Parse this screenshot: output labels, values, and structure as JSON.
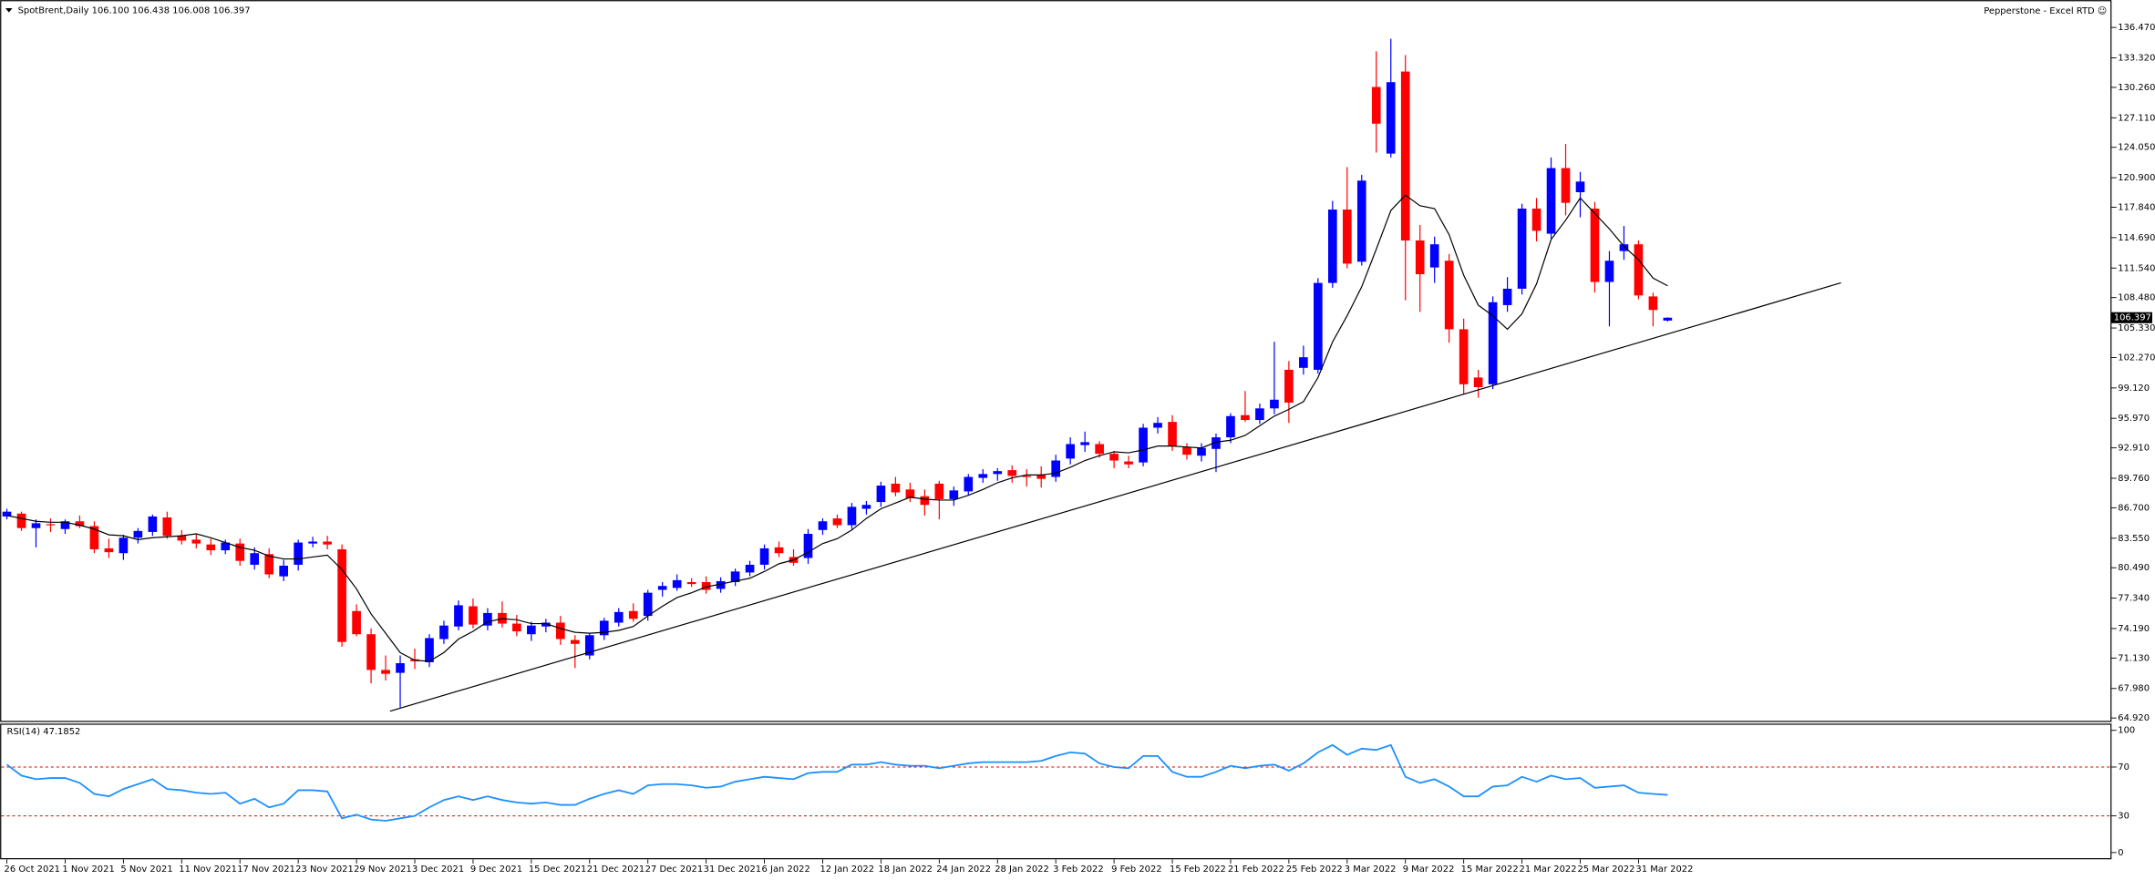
{
  "chart_data": [
    {
      "type": "candlestick",
      "title": "SpotBrent,Daily  106.100 106.438 106.008 106.397",
      "source": "Pepperstone - Excel RTD ☺",
      "categories": [
        "26 Oct 2021",
        null,
        null,
        null,
        "1 Nov 2021",
        null,
        null,
        null,
        "5 Nov 2021",
        null,
        null,
        null,
        "11 Nov 2021",
        null,
        null,
        null,
        "17 Nov 2021",
        null,
        null,
        null,
        "23 Nov 2021",
        null,
        null,
        null,
        "29 Nov 2021",
        null,
        null,
        null,
        "3 Dec 2021",
        null,
        null,
        null,
        "9 Dec 2021",
        null,
        null,
        null,
        "15 Dec 2021",
        null,
        null,
        null,
        "21 Dec 2021",
        null,
        null,
        null,
        "27 Dec 2021",
        null,
        null,
        null,
        "31 Dec 2021",
        null,
        null,
        null,
        "6 Jan 2022",
        null,
        null,
        null,
        "12 Jan 2022",
        null,
        null,
        null,
        "18 Jan 2022",
        null,
        null,
        null,
        "24 Jan 2022",
        null,
        null,
        null,
        "28 Jan 2022",
        null,
        null,
        null,
        "3 Feb 2022",
        null,
        null,
        null,
        "9 Feb 2022",
        null,
        null,
        null,
        "15 Feb 2022",
        null,
        null,
        null,
        "21 Feb 2022",
        null,
        null,
        null,
        "25 Feb 2022",
        null,
        null,
        null,
        "3 Mar 2022",
        null,
        null,
        null,
        "9 Mar 2022",
        null,
        null,
        null,
        "15 Mar 2022",
        null,
        null,
        null,
        "21 Mar 2022",
        null,
        null,
        null,
        "25 Mar 2022",
        null,
        null,
        null,
        "31 Mar 2022",
        null,
        null
      ],
      "open": [
        85.8,
        86.1,
        84.6,
        85.0,
        84.5,
        85.3,
        84.8,
        82.5,
        82.0,
        83.6,
        84.2,
        85.7,
        83.8,
        83.4,
        82.9,
        82.3,
        83.0,
        80.8,
        81.9,
        79.6,
        80.8,
        83.0,
        83.2,
        82.4,
        76.0,
        73.6,
        69.9,
        69.6,
        71.0,
        70.7,
        73.1,
        74.4,
        76.5,
        74.5,
        75.8,
        74.7,
        73.6,
        74.4,
        74.8,
        73.0,
        71.4,
        73.5,
        74.8,
        76.0,
        75.5,
        78.2,
        78.4,
        79.0,
        79.0,
        78.3,
        79.0,
        80.0,
        80.8,
        82.6,
        81.6,
        81.5,
        84.4,
        85.6,
        84.9,
        86.6,
        87.3,
        89.2,
        88.6,
        87.9,
        89.2,
        87.6,
        88.4,
        89.8,
        90.2,
        90.6,
        90.0,
        90.1,
        89.9,
        91.8,
        93.2,
        93.3,
        92.3,
        91.5,
        91.4,
        95.0,
        95.6,
        93.0,
        92.1,
        92.8,
        94.0,
        96.3,
        95.8,
        97.0,
        101.0,
        101.2,
        101.0,
        110.0,
        117.6,
        112.2,
        130.3,
        123.4,
        131.9,
        114.4,
        111.6,
        112.3,
        105.2,
        100.2,
        99.5,
        107.7,
        109.4,
        117.7,
        115.1,
        121.9,
        119.4,
        117.7,
        110.1,
        113.3,
        114.0,
        108.6,
        106.1
      ],
      "high": [
        86.6,
        86.3,
        85.5,
        85.6,
        85.5,
        85.9,
        85.3,
        83.5,
        83.9,
        84.6,
        86.0,
        86.3,
        84.4,
        84.0,
        83.5,
        83.4,
        83.5,
        82.6,
        82.5,
        81.3,
        83.4,
        83.7,
        83.8,
        82.9,
        76.7,
        74.2,
        71.4,
        71.4,
        72.1,
        73.6,
        75.0,
        77.1,
        77.3,
        76.3,
        77.0,
        75.6,
        74.9,
        75.2,
        75.5,
        73.5,
        73.7,
        75.3,
        76.3,
        76.8,
        78.2,
        79.0,
        79.8,
        79.4,
        79.6,
        79.5,
        80.4,
        81.2,
        82.9,
        83.2,
        82.4,
        84.5,
        85.6,
        86.0,
        87.2,
        87.4,
        89.4,
        89.9,
        89.3,
        88.6,
        89.5,
        88.9,
        90.2,
        90.7,
        90.8,
        91.1,
        90.7,
        91.0,
        92.2,
        94.0,
        94.6,
        93.6,
        92.6,
        92.1,
        95.4,
        96.1,
        96.3,
        93.4,
        93.4,
        94.4,
        96.5,
        98.8,
        97.5,
        103.9,
        101.9,
        103.5,
        110.5,
        118.5,
        122.0,
        121.2,
        134.0,
        135.3,
        133.6,
        116.0,
        114.8,
        113.0,
        106.3,
        101.0,
        108.6,
        110.6,
        118.2,
        118.8,
        123.0,
        124.4,
        121.5,
        118.4,
        113.3,
        115.9,
        114.4,
        109.0,
        106.438
      ],
      "low": [
        85.5,
        84.3,
        82.6,
        84.2,
        84.0,
        84.6,
        82.0,
        81.5,
        81.3,
        83.0,
        83.8,
        83.5,
        82.9,
        82.5,
        81.8,
        81.9,
        80.7,
        80.3,
        79.4,
        79.1,
        80.2,
        82.6,
        82.4,
        72.3,
        73.4,
        68.5,
        68.8,
        66.0,
        70.0,
        70.2,
        72.6,
        74.0,
        74.2,
        74.0,
        74.3,
        73.4,
        72.9,
        73.8,
        72.5,
        70.1,
        71.0,
        73.0,
        74.4,
        74.9,
        75.0,
        77.5,
        78.1,
        78.5,
        77.8,
        77.9,
        78.6,
        79.6,
        80.3,
        81.6,
        80.7,
        80.9,
        83.9,
        84.6,
        84.5,
        86.0,
        86.8,
        87.9,
        87.3,
        85.9,
        85.5,
        86.9,
        88.0,
        89.3,
        89.5,
        89.3,
        88.9,
        88.8,
        89.4,
        91.2,
        92.5,
        91.9,
        90.8,
        90.8,
        91.0,
        94.4,
        92.6,
        91.7,
        91.5,
        90.4,
        93.4,
        95.6,
        95.4,
        96.4,
        95.5,
        100.5,
        100.6,
        109.5,
        111.5,
        111.8,
        123.5,
        123.0,
        108.2,
        107.0,
        110.0,
        103.8,
        98.5,
        98.1,
        99.0,
        107.0,
        108.8,
        114.3,
        114.6,
        117.0,
        116.8,
        109.0,
        105.5,
        112.4,
        108.3,
        105.5,
        106.008
      ],
      "close": [
        86.3,
        84.6,
        85.1,
        84.9,
        85.3,
        84.8,
        82.4,
        82.1,
        83.6,
        84.3,
        85.8,
        83.8,
        83.3,
        83.0,
        82.3,
        83.1,
        81.2,
        82.0,
        79.8,
        80.7,
        83.1,
        83.2,
        82.9,
        72.8,
        73.6,
        69.9,
        69.5,
        70.6,
        70.8,
        73.2,
        74.5,
        76.6,
        74.6,
        75.8,
        74.7,
        73.9,
        74.5,
        74.8,
        73.1,
        72.6,
        73.5,
        75.0,
        75.9,
        75.2,
        77.9,
        78.6,
        79.2,
        78.8,
        78.2,
        79.1,
        80.1,
        80.8,
        82.5,
        82.0,
        81.0,
        84.0,
        85.3,
        84.9,
        86.8,
        87.0,
        89.0,
        88.3,
        87.7,
        87.0,
        87.6,
        88.5,
        89.9,
        90.2,
        90.5,
        90.0,
        89.9,
        89.7,
        91.6,
        93.3,
        93.5,
        92.3,
        91.6,
        91.2,
        95.0,
        95.5,
        93.1,
        92.2,
        92.9,
        94.0,
        96.2,
        95.8,
        97.0,
        97.9,
        97.6,
        102.3,
        110.0,
        117.6,
        112.0,
        120.6,
        126.5,
        130.8,
        114.4,
        110.9,
        114.0,
        105.2,
        99.5,
        99.2,
        108.0,
        109.4,
        117.7,
        115.4,
        121.9,
        118.3,
        120.5,
        110.1,
        112.3,
        114.0,
        108.7,
        107.2,
        106.397
      ],
      "ma": [
        85.9,
        85.6,
        85.3,
        85.2,
        85.2,
        84.9,
        84.5,
        83.9,
        83.8,
        83.4,
        83.6,
        83.7,
        83.8,
        84.0,
        83.6,
        83.1,
        82.6,
        82.3,
        81.7,
        81.4,
        81.4,
        81.6,
        81.8,
        80.3,
        78.3,
        75.7,
        73.7,
        71.7,
        70.9,
        70.8,
        71.7,
        73.1,
        73.9,
        74.9,
        75.2,
        75.1,
        74.7,
        74.7,
        74.2,
        73.8,
        73.7,
        73.8,
        74.0,
        74.4,
        75.5,
        76.5,
        77.4,
        77.9,
        78.5,
        78.8,
        79.1,
        79.4,
        80.1,
        80.9,
        81.3,
        82.1,
        83.0,
        83.5,
        84.4,
        85.6,
        86.6,
        87.2,
        87.8,
        87.6,
        87.5,
        87.5,
        88.0,
        88.6,
        89.3,
        89.8,
        90.1,
        90.1,
        90.3,
        90.9,
        91.6,
        92.1,
        92.5,
        92.4,
        92.7,
        93.1,
        93.1,
        93.0,
        92.9,
        93.5,
        93.7,
        94.2,
        95.2,
        96.2,
        96.9,
        97.7,
        100.2,
        103.9,
        106.6,
        109.6,
        113.5,
        117.5,
        119.1,
        118.0,
        117.7,
        115.0,
        110.8,
        107.7,
        106.6,
        105.2,
        106.8,
        109.9,
        114.5,
        116.5,
        118.8,
        117.2,
        115.6,
        113.8,
        112.4,
        110.5,
        109.7
      ],
      "trendline": {
        "x": [
          26.3,
          125.9
        ],
        "y": [
          65.63,
          110.01
        ]
      },
      "up_color": "#0000ff",
      "down_color": "#ff0000",
      "ma_color": "#000000",
      "trendline_color": "#000000",
      "ylim": [
        64.636,
        138.888
      ],
      "yticks": [
        {
          "value": 136.47,
          "label": "136.470"
        },
        {
          "value": 133.32,
          "label": "133.320"
        },
        {
          "value": 130.26,
          "label": "130.260"
        },
        {
          "value": 127.11,
          "label": "127.110"
        },
        {
          "value": 124.05,
          "label": "124.050"
        },
        {
          "value": 120.9,
          "label": "120.900"
        },
        {
          "value": 117.84,
          "label": "117.840"
        },
        {
          "value": 114.69,
          "label": "114.690"
        },
        {
          "value": 111.54,
          "label": "111.540"
        },
        {
          "value": 108.48,
          "label": "108.480"
        },
        {
          "value": 105.33,
          "label": "105.330"
        },
        {
          "value": 102.27,
          "label": "102.270"
        },
        {
          "value": 99.12,
          "label": "99.120"
        },
        {
          "value": 95.97,
          "label": "95.970"
        },
        {
          "value": 92.91,
          "label": "92.910"
        },
        {
          "value": 89.76,
          "label": "89.760"
        },
        {
          "value": 86.7,
          "label": "86.700"
        },
        {
          "value": 83.55,
          "label": "83.550"
        },
        {
          "value": 80.49,
          "label": "80.490"
        },
        {
          "value": 77.34,
          "label": "77.340"
        },
        {
          "value": 74.19,
          "label": "74.190"
        },
        {
          "value": 71.13,
          "label": "71.130"
        },
        {
          "value": 67.98,
          "label": "67.980"
        },
        {
          "value": 64.92,
          "label": "64.920"
        }
      ]
    },
    {
      "type": "line",
      "title": "RSI(14) 47.1852",
      "values": [
        72,
        63,
        60,
        61,
        61,
        57,
        48,
        46,
        52,
        56,
        60,
        52,
        51,
        49,
        48,
        49,
        40,
        44,
        37,
        40,
        51,
        51,
        50,
        28,
        31,
        27,
        26,
        28,
        30,
        37,
        43,
        46,
        43,
        46,
        43,
        41,
        40,
        41,
        39,
        39,
        44,
        48,
        51,
        48,
        55,
        56,
        56,
        55,
        53,
        54,
        58,
        60,
        62,
        61,
        60,
        65,
        66,
        66,
        72,
        72,
        74,
        72,
        71,
        71,
        69,
        71,
        73,
        74,
        74,
        74,
        74,
        75,
        79,
        82,
        81,
        73,
        70,
        69,
        79,
        79,
        66,
        62,
        62,
        66,
        71,
        69,
        71,
        72,
        67,
        73,
        82,
        88,
        80,
        85,
        84,
        88,
        62,
        57,
        60,
        54,
        46,
        46,
        54,
        55,
        62,
        58,
        63,
        60,
        61,
        53,
        54,
        55,
        49,
        48,
        47.1852
      ],
      "color": "#1e90ff",
      "levels": [
        70,
        30
      ],
      "level_color": "#e00000",
      "ylim": [
        0,
        100
      ],
      "yticks": [
        100,
        70,
        30,
        0
      ]
    }
  ]
}
